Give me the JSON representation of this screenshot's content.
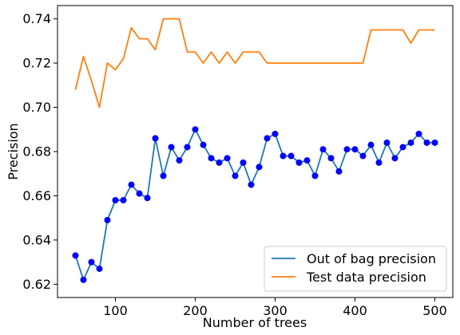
{
  "chart_data": {
    "type": "line",
    "title": "",
    "xlabel": "Number of trees",
    "ylabel": "Precision",
    "xlim": [
      27.5,
      522.5
    ],
    "ylim": [
      0.614,
      0.746
    ],
    "xticks": [
      100,
      200,
      300,
      400,
      500
    ],
    "yticks": [
      0.62,
      0.64,
      0.66,
      0.68,
      0.7,
      0.72,
      0.74
    ],
    "ytick_labels": [
      "0.62",
      "0.64",
      "0.66",
      "0.68",
      "0.70",
      "0.72",
      "0.74"
    ],
    "grid": false,
    "legend_position": "lower-right",
    "x": [
      50,
      60,
      70,
      80,
      90,
      100,
      110,
      120,
      130,
      140,
      150,
      160,
      170,
      180,
      190,
      200,
      210,
      220,
      230,
      240,
      250,
      260,
      270,
      280,
      290,
      300,
      310,
      320,
      330,
      340,
      350,
      360,
      370,
      380,
      390,
      400,
      410,
      420,
      430,
      440,
      450,
      460,
      470,
      480,
      490,
      500
    ],
    "series": [
      {
        "name": "Out of bag precision",
        "color": "#1f77b4",
        "marker_color": "#0000ff",
        "markers": true,
        "values": [
          0.633,
          0.622,
          0.63,
          0.627,
          0.649,
          0.658,
          0.658,
          0.665,
          0.661,
          0.659,
          0.686,
          0.669,
          0.682,
          0.676,
          0.682,
          0.69,
          0.683,
          0.677,
          0.675,
          0.677,
          0.669,
          0.675,
          0.665,
          0.673,
          0.686,
          0.688,
          0.678,
          0.678,
          0.675,
          0.676,
          0.669,
          0.681,
          0.677,
          0.671,
          0.681,
          0.681,
          0.678,
          0.683,
          0.675,
          0.684,
          0.677,
          0.682,
          0.684,
          0.688,
          0.684,
          0.684
        ]
      },
      {
        "name": "Test data precision",
        "color": "#ff7f0e",
        "markers": false,
        "values": [
          0.708,
          0.723,
          0.712,
          0.7,
          0.72,
          0.717,
          0.722,
          0.736,
          0.731,
          0.731,
          0.726,
          0.74,
          0.74,
          0.74,
          0.725,
          0.725,
          0.72,
          0.725,
          0.72,
          0.725,
          0.72,
          0.725,
          0.725,
          0.725,
          0.72,
          0.72,
          0.72,
          0.72,
          0.72,
          0.72,
          0.72,
          0.72,
          0.72,
          0.72,
          0.72,
          0.72,
          0.72,
          0.735,
          0.735,
          0.735,
          0.735,
          0.735,
          0.729,
          0.735,
          0.735,
          0.735
        ]
      }
    ]
  }
}
